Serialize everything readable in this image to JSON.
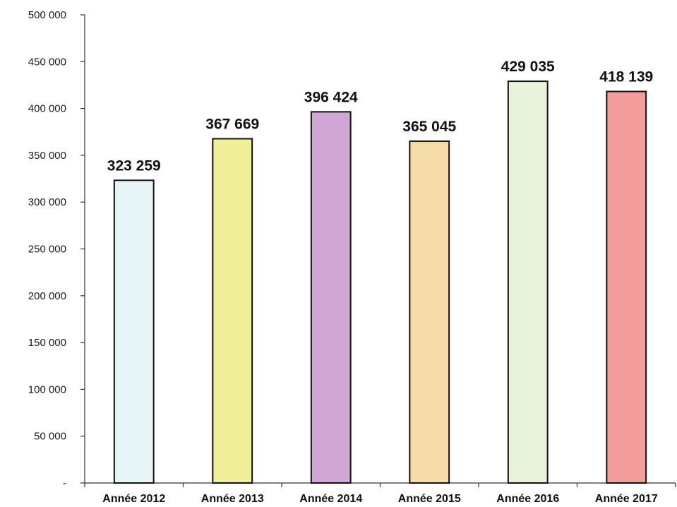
{
  "chart_data": {
    "type": "bar",
    "categories": [
      "Année 2012",
      "Année 2013",
      "Année 2014",
      "Année 2015",
      "Année 2016",
      "Année 2017"
    ],
    "values": [
      323259,
      367669,
      396424,
      365045,
      429035,
      418139
    ],
    "value_labels": [
      "323 259",
      "367 669",
      "396 424",
      "365 045",
      "429 035",
      "418 139"
    ],
    "bar_colors": [
      "#e8f5f6",
      "#f0ef9a",
      "#cfa6d4",
      "#f5dba8",
      "#e8f3dd",
      "#f29c9b"
    ],
    "ylim": [
      0,
      500000
    ],
    "yticks": [
      0,
      50000,
      100000,
      150000,
      200000,
      250000,
      300000,
      350000,
      400000,
      450000,
      500000
    ],
    "ytick_labels": [
      "-",
      "50 000",
      "100 000",
      "150 000",
      "200 000",
      "250 000",
      "300 000",
      "350 000",
      "400 000",
      "450 000",
      "500 000"
    ],
    "grid": false,
    "legend": "none"
  }
}
